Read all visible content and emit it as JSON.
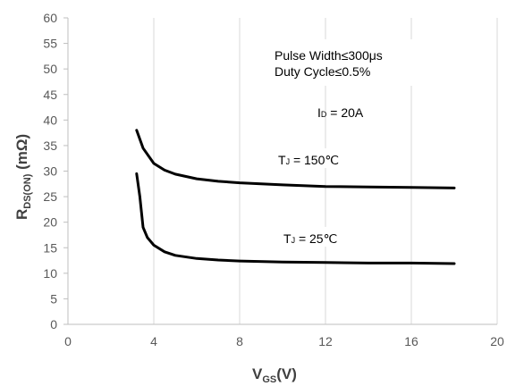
{
  "chart_data": {
    "type": "line",
    "xlabel": {
      "main": "V",
      "sub": "GS",
      "suffix": "(V)"
    },
    "ylabel": {
      "main": "R",
      "sub": "DS(ON)",
      "suffix": " (mΩ)"
    },
    "xlim": [
      0,
      20
    ],
    "ylim": [
      0,
      60
    ],
    "xticks": [
      0,
      4,
      8,
      12,
      16,
      20
    ],
    "yticks": [
      0,
      5,
      10,
      15,
      20,
      25,
      30,
      35,
      40,
      45,
      50,
      55,
      60
    ],
    "grid": {
      "vertical": true,
      "horizontal": false
    },
    "series": [
      {
        "name": "TJ = 150°C",
        "points": [
          [
            3.2,
            38
          ],
          [
            3.5,
            34.5
          ],
          [
            4.0,
            31.5
          ],
          [
            4.5,
            30.2
          ],
          [
            5,
            29.4
          ],
          [
            6,
            28.5
          ],
          [
            7,
            28.0
          ],
          [
            8,
            27.7
          ],
          [
            10,
            27.3
          ],
          [
            12,
            27.0
          ],
          [
            14,
            26.9
          ],
          [
            16,
            26.8
          ],
          [
            18,
            26.7
          ]
        ]
      },
      {
        "name": "TJ = 25°C",
        "points": [
          [
            3.2,
            29.5
          ],
          [
            3.35,
            25
          ],
          [
            3.5,
            19
          ],
          [
            3.7,
            17
          ],
          [
            4.0,
            15.5
          ],
          [
            4.5,
            14.2
          ],
          [
            5,
            13.5
          ],
          [
            6,
            12.9
          ],
          [
            7,
            12.6
          ],
          [
            8,
            12.4
          ],
          [
            10,
            12.2
          ],
          [
            12,
            12.1
          ],
          [
            14,
            12.0
          ],
          [
            16,
            12.0
          ],
          [
            18,
            11.9
          ]
        ]
      }
    ],
    "annotations": {
      "pulse": "Pulse Width≤300μs",
      "duty": "Duty Cycle≤0.5%",
      "id": {
        "main": "I",
        "sub": "D",
        "rest": " = 20A"
      },
      "t150": {
        "main": "T",
        "sub": "J",
        "rest": " = 150℃"
      },
      "t25": {
        "main": "T",
        "sub": "J",
        "rest": " = 25℃"
      }
    }
  }
}
